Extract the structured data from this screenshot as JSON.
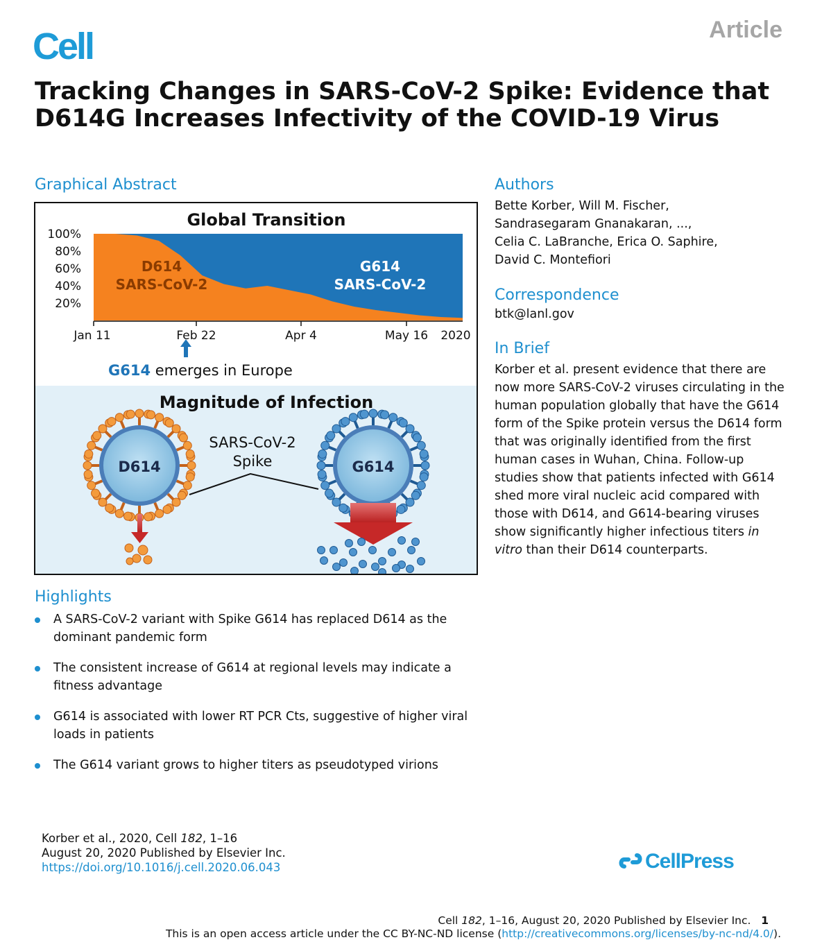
{
  "header": {
    "journal_logo": "Cell",
    "article_type": "Article",
    "title": "Tracking Changes in SARS-CoV-2 Spike: Evidence that D614G Increases Infectivity of the COVID-19 Virus"
  },
  "graphical_abstract": {
    "heading": "Graphical Abstract",
    "global_transition_title": "Global Transition",
    "d614_label_line1": "D614",
    "d614_label_line2": "SARS-CoV-2",
    "g614_label_line1": "G614",
    "g614_label_line2": "SARS-CoV-2",
    "emerges_bold": "G614",
    "emerges_rest": " emerges in Europe",
    "magnitude_title": "Magnitude of Infection",
    "spike_label_line1": "SARS-CoV-2",
    "spike_label_line2": "Spike",
    "left_virus_label": "D614",
    "right_virus_label": "G614"
  },
  "chart_data": {
    "type": "area",
    "title": "Global Transition",
    "x_ticks": [
      "Jan 11",
      "Feb 22",
      "Apr 4",
      "May 16",
      "2020"
    ],
    "y_ticks": [
      "100%",
      "80%",
      "60%",
      "40%",
      "20%"
    ],
    "ylim": [
      0,
      100
    ],
    "series": [
      {
        "name": "D614",
        "color": "#f5821f",
        "x": [
          "Jan 11",
          "Jan 25",
          "Feb 8",
          "Feb 22",
          "Mar 1",
          "Mar 8",
          "Mar 15",
          "Mar 22",
          "Mar 29",
          "Apr 4",
          "Apr 11",
          "Apr 18",
          "Apr 25",
          "May 2",
          "May 9",
          "May 16",
          "May 23",
          "May 30"
        ],
        "values": [
          100,
          100,
          98,
          92,
          75,
          52,
          42,
          37,
          40,
          35,
          30,
          22,
          16,
          12,
          9,
          6,
          4,
          3
        ]
      },
      {
        "name": "G614",
        "color": "#1f75b8",
        "x": [
          "Jan 11",
          "Jan 25",
          "Feb 8",
          "Feb 22",
          "Mar 1",
          "Mar 8",
          "Mar 15",
          "Mar 22",
          "Mar 29",
          "Apr 4",
          "Apr 11",
          "Apr 18",
          "Apr 25",
          "May 2",
          "May 9",
          "May 16",
          "May 23",
          "May 30"
        ],
        "values": [
          0,
          0,
          2,
          8,
          25,
          48,
          58,
          63,
          60,
          65,
          70,
          78,
          84,
          88,
          91,
          94,
          96,
          97
        ]
      }
    ],
    "annotation": "G614 emerges in Europe"
  },
  "authors": {
    "heading": "Authors",
    "lines": [
      "Bette Korber, Will M. Fischer,",
      "Sandrasegaram Gnanakaran, ...,",
      "Celia C. LaBranche, Erica O. Saphire,",
      "David C. Montefiori"
    ]
  },
  "correspondence": {
    "heading": "Correspondence",
    "email": "btk@lanl.gov"
  },
  "in_brief": {
    "heading": "In Brief",
    "text_before_italic": "Korber et al. present evidence that there are now more SARS-CoV-2 viruses circulating in the human population globally that have the G614 form of the Spike protein versus the D614 form that was originally identified from the first human cases in Wuhan, China. Follow-up studies show that patients infected with G614 shed more viral nucleic acid compared with those with D614, and G614-bearing viruses show significantly higher infectious titers ",
    "italic": "in vitro",
    "text_after_italic": " than their D614 counterparts."
  },
  "highlights": {
    "heading": "Highlights",
    "items": [
      "A SARS-CoV-2 variant with Spike G614 has replaced D614 as the dominant pandemic form",
      "The consistent increase of G614 at regional levels may indicate a fitness advantage",
      "G614 is associated with lower RT PCR Cts, suggestive of higher viral loads in patients",
      "The G614 variant grows to higher titers as pseudotyped virions"
    ]
  },
  "citation": {
    "line1_prefix": "Korber et al., 2020, Cell ",
    "line1_volume": "182",
    "line1_suffix": ", 1–16",
    "line2": "August 20, 2020 Published by Elsevier Inc.",
    "doi": "https://doi.org/10.1016/j.cell.2020.06.043"
  },
  "publisher_logo": "CellPress",
  "footer": {
    "line1_prefix": "Cell ",
    "line1_volume": "182",
    "line1_suffix": ", 1–16, August 20, 2020 Published by Elsevier Inc.",
    "page_number": "1",
    "line2_prefix": "This is an open access article under the CC BY-NC-ND license (",
    "license_url": "http://creativecommons.org/licenses/by-nc-nd/4.0/",
    "line2_suffix": ")."
  }
}
